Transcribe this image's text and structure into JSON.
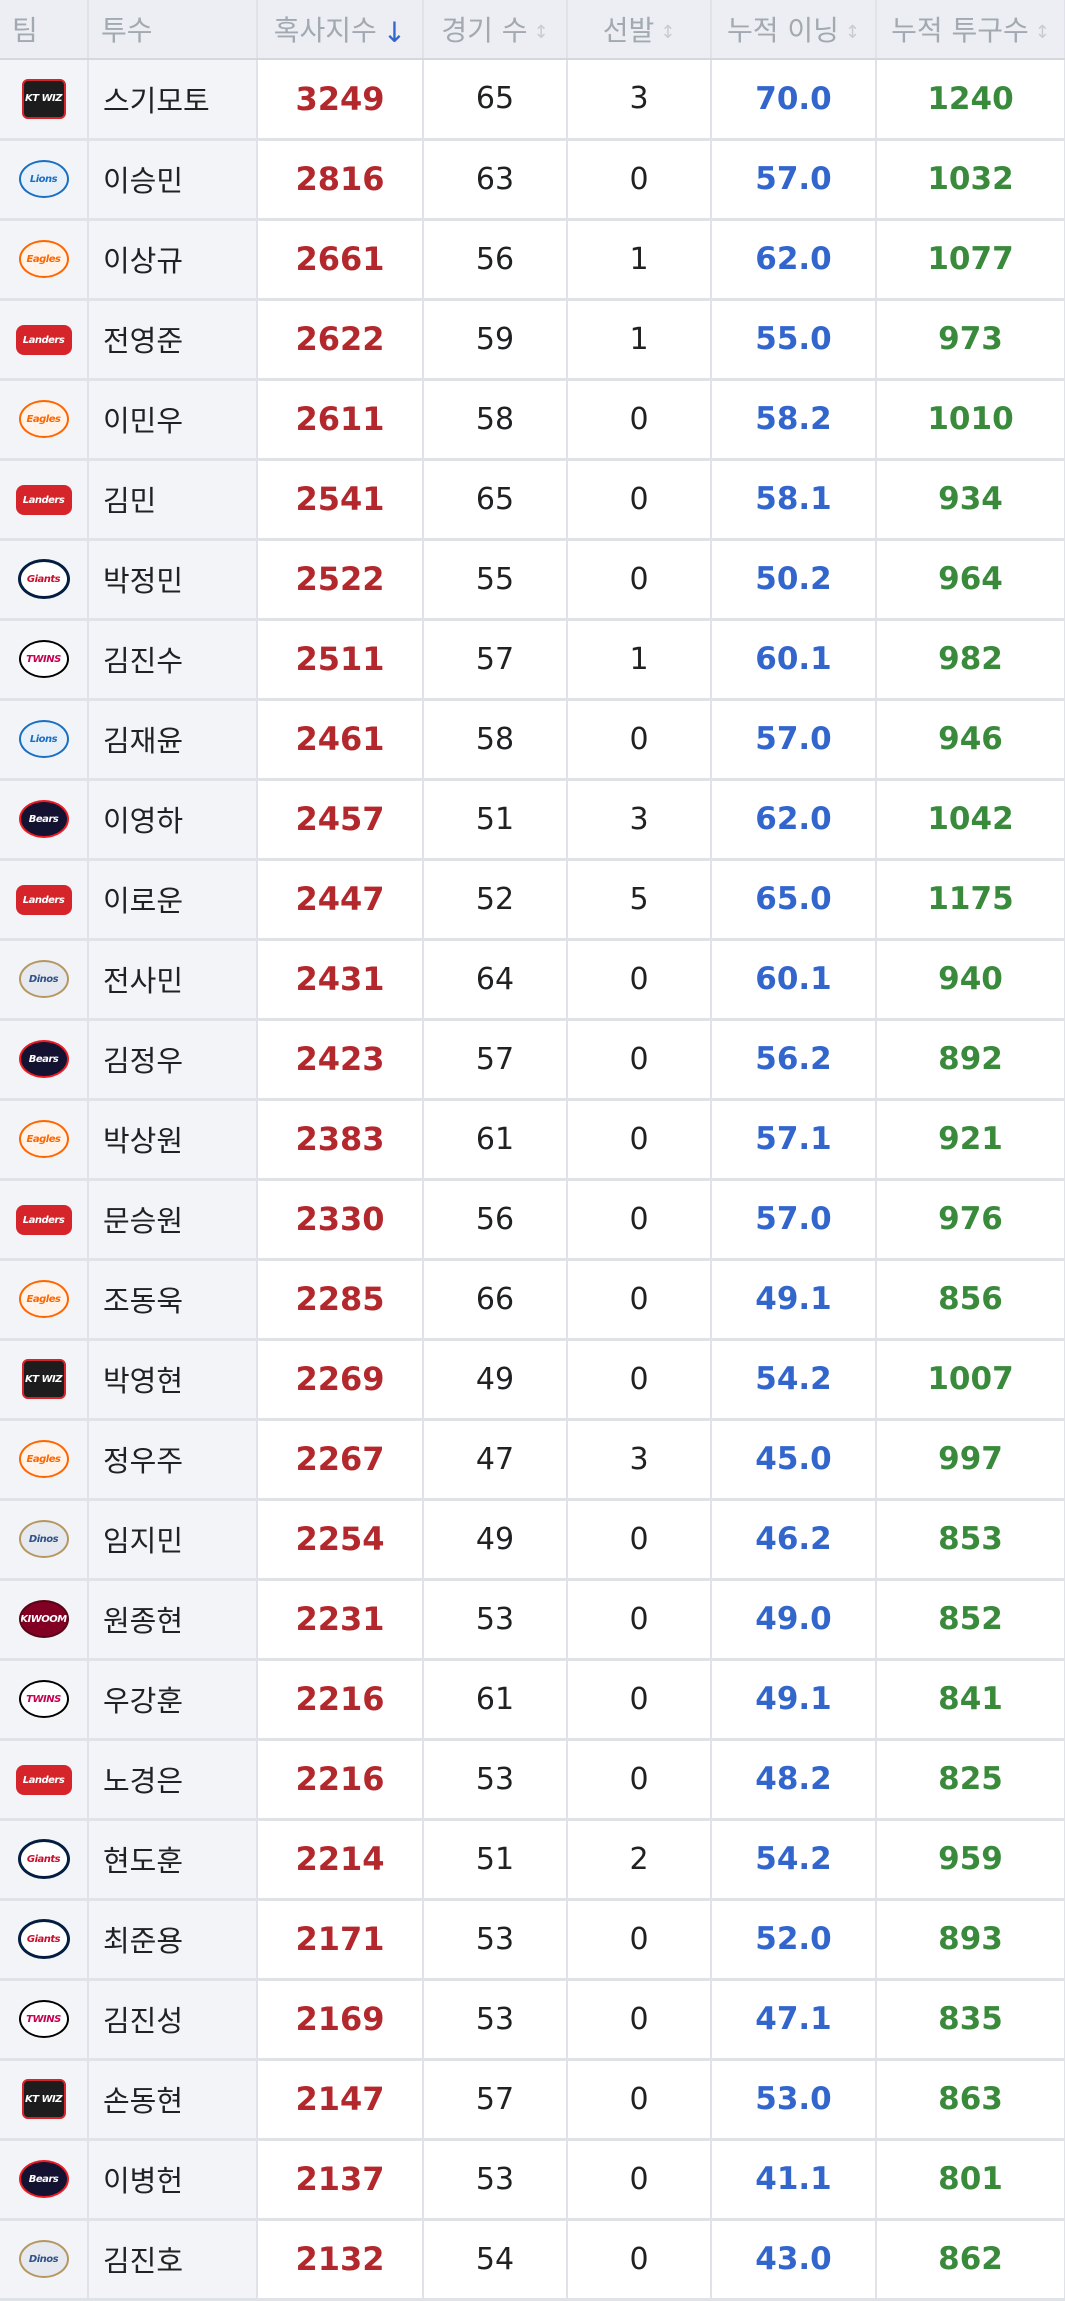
{
  "columns": {
    "team": "팀",
    "name": "투수",
    "balance": "혹사지수",
    "games": "경기 수",
    "starts": "선발",
    "innings": "누적 이닝",
    "pitches": "누적 투구수"
  },
  "rows": [
    {
      "team": "kt-wiz",
      "logo": "KT WIZ",
      "name": "스기모토",
      "balance": "3249",
      "games": "65",
      "starts": "3",
      "innings": "70.0",
      "pitches": "1240"
    },
    {
      "team": "lions",
      "logo": "Lions",
      "name": "이승민",
      "balance": "2816",
      "games": "63",
      "starts": "0",
      "innings": "57.0",
      "pitches": "1032"
    },
    {
      "team": "eagles",
      "logo": "Eagles",
      "name": "이상규",
      "balance": "2661",
      "games": "56",
      "starts": "1",
      "innings": "62.0",
      "pitches": "1077"
    },
    {
      "team": "landers",
      "logo": "Landers",
      "name": "전영준",
      "balance": "2622",
      "games": "59",
      "starts": "1",
      "innings": "55.0",
      "pitches": "973"
    },
    {
      "team": "eagles",
      "logo": "Eagles",
      "name": "이민우",
      "balance": "2611",
      "games": "58",
      "starts": "0",
      "innings": "58.2",
      "pitches": "1010"
    },
    {
      "team": "landers",
      "logo": "Landers",
      "name": "김민",
      "balance": "2541",
      "games": "65",
      "starts": "0",
      "innings": "58.1",
      "pitches": "934"
    },
    {
      "team": "giants",
      "logo": "Giants",
      "name": "박정민",
      "balance": "2522",
      "games": "55",
      "starts": "0",
      "innings": "50.2",
      "pitches": "964"
    },
    {
      "team": "twins",
      "logo": "TWINS",
      "name": "김진수",
      "balance": "2511",
      "games": "57",
      "starts": "1",
      "innings": "60.1",
      "pitches": "982"
    },
    {
      "team": "lions",
      "logo": "Lions",
      "name": "김재윤",
      "balance": "2461",
      "games": "58",
      "starts": "0",
      "innings": "57.0",
      "pitches": "946"
    },
    {
      "team": "bears",
      "logo": "Bears",
      "name": "이영하",
      "balance": "2457",
      "games": "51",
      "starts": "3",
      "innings": "62.0",
      "pitches": "1042"
    },
    {
      "team": "landers",
      "logo": "Landers",
      "name": "이로운",
      "balance": "2447",
      "games": "52",
      "starts": "5",
      "innings": "65.0",
      "pitches": "1175"
    },
    {
      "team": "dinos",
      "logo": "Dinos",
      "name": "전사민",
      "balance": "2431",
      "games": "64",
      "starts": "0",
      "innings": "60.1",
      "pitches": "940"
    },
    {
      "team": "bears",
      "logo": "Bears",
      "name": "김정우",
      "balance": "2423",
      "games": "57",
      "starts": "0",
      "innings": "56.2",
      "pitches": "892"
    },
    {
      "team": "eagles",
      "logo": "Eagles",
      "name": "박상원",
      "balance": "2383",
      "games": "61",
      "starts": "0",
      "innings": "57.1",
      "pitches": "921"
    },
    {
      "team": "landers",
      "logo": "Landers",
      "name": "문승원",
      "balance": "2330",
      "games": "56",
      "starts": "0",
      "innings": "57.0",
      "pitches": "976"
    },
    {
      "team": "eagles",
      "logo": "Eagles",
      "name": "조동욱",
      "balance": "2285",
      "games": "66",
      "starts": "0",
      "innings": "49.1",
      "pitches": "856"
    },
    {
      "team": "kt-wiz",
      "logo": "KT WIZ",
      "name": "박영현",
      "balance": "2269",
      "games": "49",
      "starts": "0",
      "innings": "54.2",
      "pitches": "1007"
    },
    {
      "team": "eagles",
      "logo": "Eagles",
      "name": "정우주",
      "balance": "2267",
      "games": "47",
      "starts": "3",
      "innings": "45.0",
      "pitches": "997"
    },
    {
      "team": "dinos",
      "logo": "Dinos",
      "name": "임지민",
      "balance": "2254",
      "games": "49",
      "starts": "0",
      "innings": "46.2",
      "pitches": "853"
    },
    {
      "team": "kiwoom",
      "logo": "KIWOOM",
      "name": "원종현",
      "balance": "2231",
      "games": "53",
      "starts": "0",
      "innings": "49.0",
      "pitches": "852"
    },
    {
      "team": "twins",
      "logo": "TWINS",
      "name": "우강훈",
      "balance": "2216",
      "games": "61",
      "starts": "0",
      "innings": "49.1",
      "pitches": "841"
    },
    {
      "team": "landers",
      "logo": "Landers",
      "name": "노경은",
      "balance": "2216",
      "games": "53",
      "starts": "0",
      "innings": "48.2",
      "pitches": "825"
    },
    {
      "team": "giants",
      "logo": "Giants",
      "name": "현도훈",
      "balance": "2214",
      "games": "51",
      "starts": "2",
      "innings": "54.2",
      "pitches": "959"
    },
    {
      "team": "giants",
      "logo": "Giants",
      "name": "최준용",
      "balance": "2171",
      "games": "53",
      "starts": "0",
      "innings": "52.0",
      "pitches": "893"
    },
    {
      "team": "twins",
      "logo": "TWINS",
      "name": "김진성",
      "balance": "2169",
      "games": "53",
      "starts": "0",
      "innings": "47.1",
      "pitches": "835"
    },
    {
      "team": "kt-wiz",
      "logo": "KT WIZ",
      "name": "손동현",
      "balance": "2147",
      "games": "57",
      "starts": "0",
      "innings": "53.0",
      "pitches": "863"
    },
    {
      "team": "bears",
      "logo": "Bears",
      "name": "이병헌",
      "balance": "2137",
      "games": "53",
      "starts": "0",
      "innings": "41.1",
      "pitches": "801"
    },
    {
      "team": "dinos",
      "logo": "Dinos",
      "name": "김진호",
      "balance": "2132",
      "games": "54",
      "starts": "0",
      "innings": "43.0",
      "pitches": "862"
    }
  ],
  "sort": {
    "active_column": "balance",
    "direction": "descending"
  },
  "icons": {
    "sort_active": "arrow-down-icon",
    "sort_inactive": "sort-updown-icon"
  },
  "colors": {
    "balance": "#b3282d",
    "innings": "#3366cc",
    "pitches": "#3a8a3c",
    "header_bg": "#eceef3",
    "sort_active": "#3366cc"
  }
}
